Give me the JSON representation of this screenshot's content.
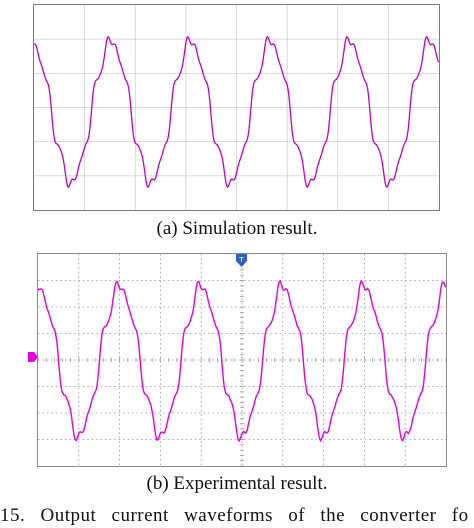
{
  "panel_a": {
    "caption": "(a) Simulation result.",
    "trace_color": "#c000c0",
    "grid_color": "#c8c8c8"
  },
  "panel_b": {
    "caption": "(b) Experimental result.",
    "trace_color": "#e000e0",
    "grid_color": "#909090",
    "trigger_marker_color": "#3060c0",
    "channel_marker_color": "#e000e0"
  },
  "figure_caption": "15. Output current waveforms of the converter fo"
}
